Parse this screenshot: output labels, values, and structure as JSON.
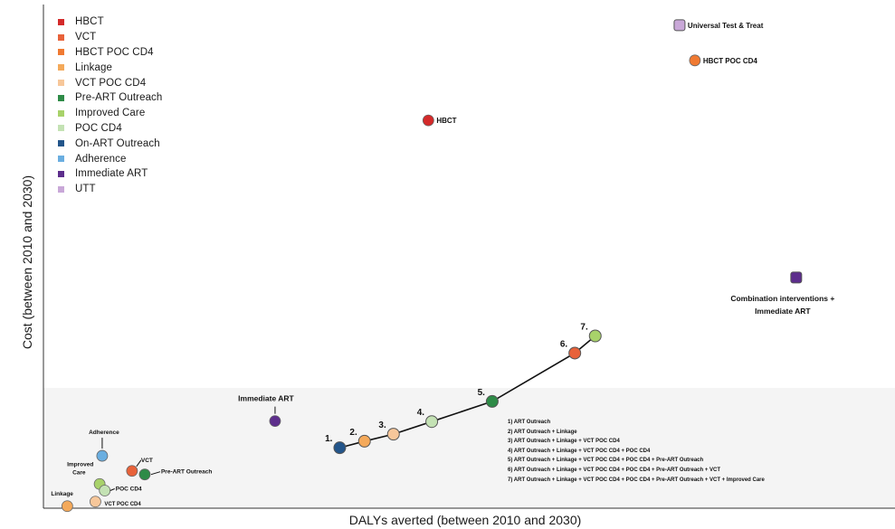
{
  "chart_data": {
    "type": "scatter",
    "xlabel": "DALYs averted (between 2010 and 2030)",
    "ylabel": "Cost (between 2010 and 2030)",
    "x_ticks_shown": false,
    "y_ticks_shown": false,
    "xlim": [
      0,
      100
    ],
    "ylim": [
      0,
      100
    ],
    "grid": false,
    "legend_position": "top-left",
    "legend": [
      {
        "label": "HBCT",
        "color": "#d42a2a"
      },
      {
        "label": "VCT",
        "color": "#e8623a"
      },
      {
        "label": "HBCT POC CD4",
        "color": "#f07a32"
      },
      {
        "label": "Linkage",
        "color": "#f4a95a"
      },
      {
        "label": "VCT POC CD4",
        "color": "#f7c79a"
      },
      {
        "label": "Pre-ART Outreach",
        "color": "#2e8b47"
      },
      {
        "label": "Improved Care",
        "color": "#a8d26a"
      },
      {
        "label": "POC CD4",
        "color": "#c4e2b4"
      },
      {
        "label": "On-ART Outreach",
        "color": "#23558a"
      },
      {
        "label": "Adherence",
        "color": "#6aaee0"
      },
      {
        "label": "Immediate ART",
        "color": "#5d2e8c"
      },
      {
        "label": "UTT",
        "color": "#c9a8d8"
      }
    ],
    "points": [
      {
        "label": "Universal Test & Treat",
        "x": 74.7,
        "y": 95.9,
        "color": "#c9a8d8",
        "shape": "square"
      },
      {
        "label": "HBCT POC CD4",
        "x": 76.5,
        "y": 88.9,
        "color": "#f07a32",
        "shape": "circle"
      },
      {
        "label": "HBCT",
        "x": 45.2,
        "y": 77.0,
        "color": "#d42a2a",
        "shape": "circle"
      },
      {
        "label": "Combination interventions + Immediate ART",
        "x": 88.4,
        "y": 45.8,
        "color": "#5d2e8c",
        "shape": "square"
      },
      {
        "label": "Immediate ART",
        "x": 27.2,
        "y": 17.3,
        "color": "#5d2e8c",
        "shape": "circle"
      },
      {
        "label": "Adherence",
        "x": 6.9,
        "y": 10.4,
        "color": "#6aaee0",
        "shape": "circle"
      },
      {
        "label": "VCT",
        "x": 10.4,
        "y": 7.4,
        "color": "#e8623a",
        "shape": "circle"
      },
      {
        "label": "Pre-ART Outreach",
        "x": 11.9,
        "y": 6.7,
        "color": "#2e8b47",
        "shape": "circle"
      },
      {
        "label": "Improved Care",
        "x": 6.6,
        "y": 4.8,
        "color": "#a8d26a",
        "shape": "circle"
      },
      {
        "label": "POC CD4",
        "x": 7.2,
        "y": 3.5,
        "color": "#c4e2b4",
        "shape": "circle"
      },
      {
        "label": "VCT POC CD4",
        "x": 6.1,
        "y": 1.3,
        "color": "#f7c79a",
        "shape": "circle"
      },
      {
        "label": "Linkage",
        "x": 2.8,
        "y": 0.4,
        "color": "#f4a95a",
        "shape": "circle"
      }
    ],
    "frontier": [
      {
        "label": "1.",
        "x": 34.8,
        "y": 12.0,
        "color": "#23558a"
      },
      {
        "label": "2.",
        "x": 37.7,
        "y": 13.3,
        "color": "#f4a95a"
      },
      {
        "label": "3.",
        "x": 41.1,
        "y": 14.7,
        "color": "#f7c79a"
      },
      {
        "label": "4.",
        "x": 45.6,
        "y": 17.2,
        "color": "#c4e2b4"
      },
      {
        "label": "5.",
        "x": 52.7,
        "y": 21.2,
        "color": "#2e8b47"
      },
      {
        "label": "6.",
        "x": 62.4,
        "y": 30.8,
        "color": "#e8623a"
      },
      {
        "label": "7.",
        "x": 64.8,
        "y": 34.2,
        "color": "#a8d26a"
      }
    ],
    "frontier_notes": [
      "1) ART Outreach",
      "2) ART Outreach + Linkage",
      "3) ART Outreach + Linkage + VCT POC CD4",
      "4) ART Outreach + Linkage + VCT POC CD4 + POC CD4",
      "5) ART Outreach + Linkage + VCT POC CD4 + POC CD4 + Pre-ART Outreach",
      "6) ART Outreach + Linkage + VCT POC CD4 + POC CD4 + Pre-ART Outreach + VCT",
      "7) ART Outreach + Linkage + VCT POC CD4 + POC CD4 + Pre-ART Outreach + VCT + Improved Care"
    ]
  }
}
